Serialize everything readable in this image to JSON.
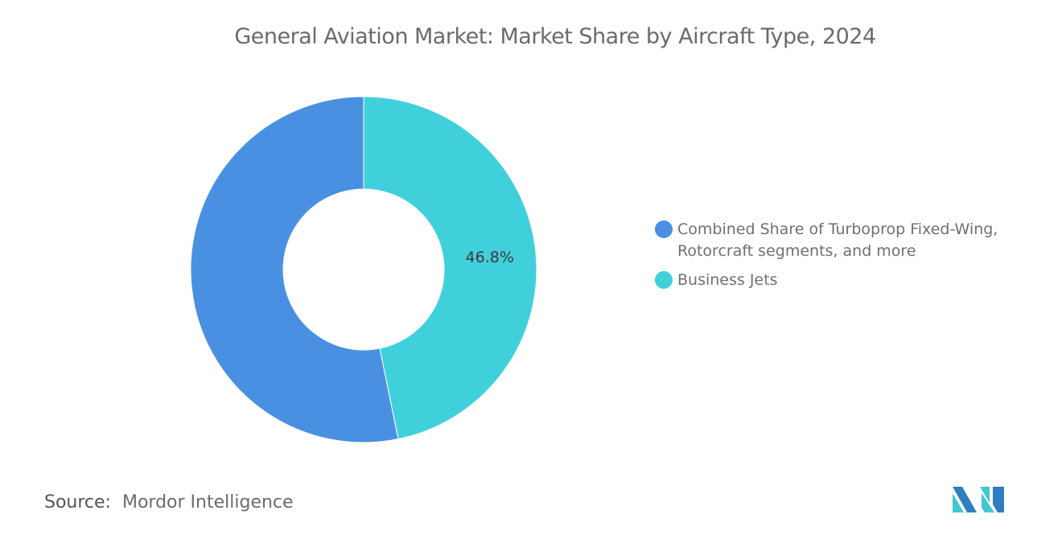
{
  "chart_data": {
    "type": "pie",
    "variant": "donut",
    "title": "General Aviation Market: Market Share by Aircraft Type, 2024",
    "categories": [
      "Combined Share of Turboprop Fixed-Wing, Rotorcraft segments, and more",
      "Business Jets"
    ],
    "values": [
      53.2,
      46.8
    ],
    "data_labels": [
      "",
      "46.8%"
    ],
    "colors": [
      "#4a90e2",
      "#40d0db"
    ],
    "legend_position": "right"
  },
  "source": {
    "label": "Source:",
    "value": "Mordor Intelligence"
  },
  "logo": {
    "name": "mordor-intelligence-logo"
  }
}
